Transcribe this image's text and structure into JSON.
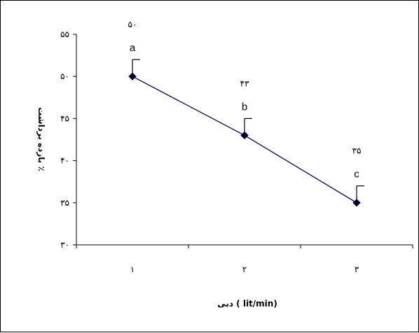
{
  "chart_data": {
    "type": "line",
    "categories": [
      "۱",
      "۲",
      "۳"
    ],
    "x": [
      1,
      2,
      3
    ],
    "series": [
      {
        "values": [
          50,
          43,
          35
        ],
        "error_plus": [
          2,
          2,
          2
        ],
        "color": "#000066",
        "marker": "diamond"
      }
    ],
    "annotations": [
      {
        "value_label": "۵۰",
        "group_label": "a"
      },
      {
        "value_label": "۴۳",
        "group_label": "b"
      },
      {
        "value_label": "۳۵",
        "group_label": "c"
      }
    ],
    "xlabel": "دبی ( lit/min)",
    "ylabel": "بازده برداشت ٪",
    "ylim": [
      30,
      55
    ],
    "yticks": [
      30,
      35,
      40,
      45,
      50,
      55
    ],
    "ytick_labels": [
      "۳۰",
      "۳۵",
      "۴۰",
      "۴۵",
      "۵۰",
      "۵۵"
    ],
    "grid": false,
    "legend": "none"
  }
}
